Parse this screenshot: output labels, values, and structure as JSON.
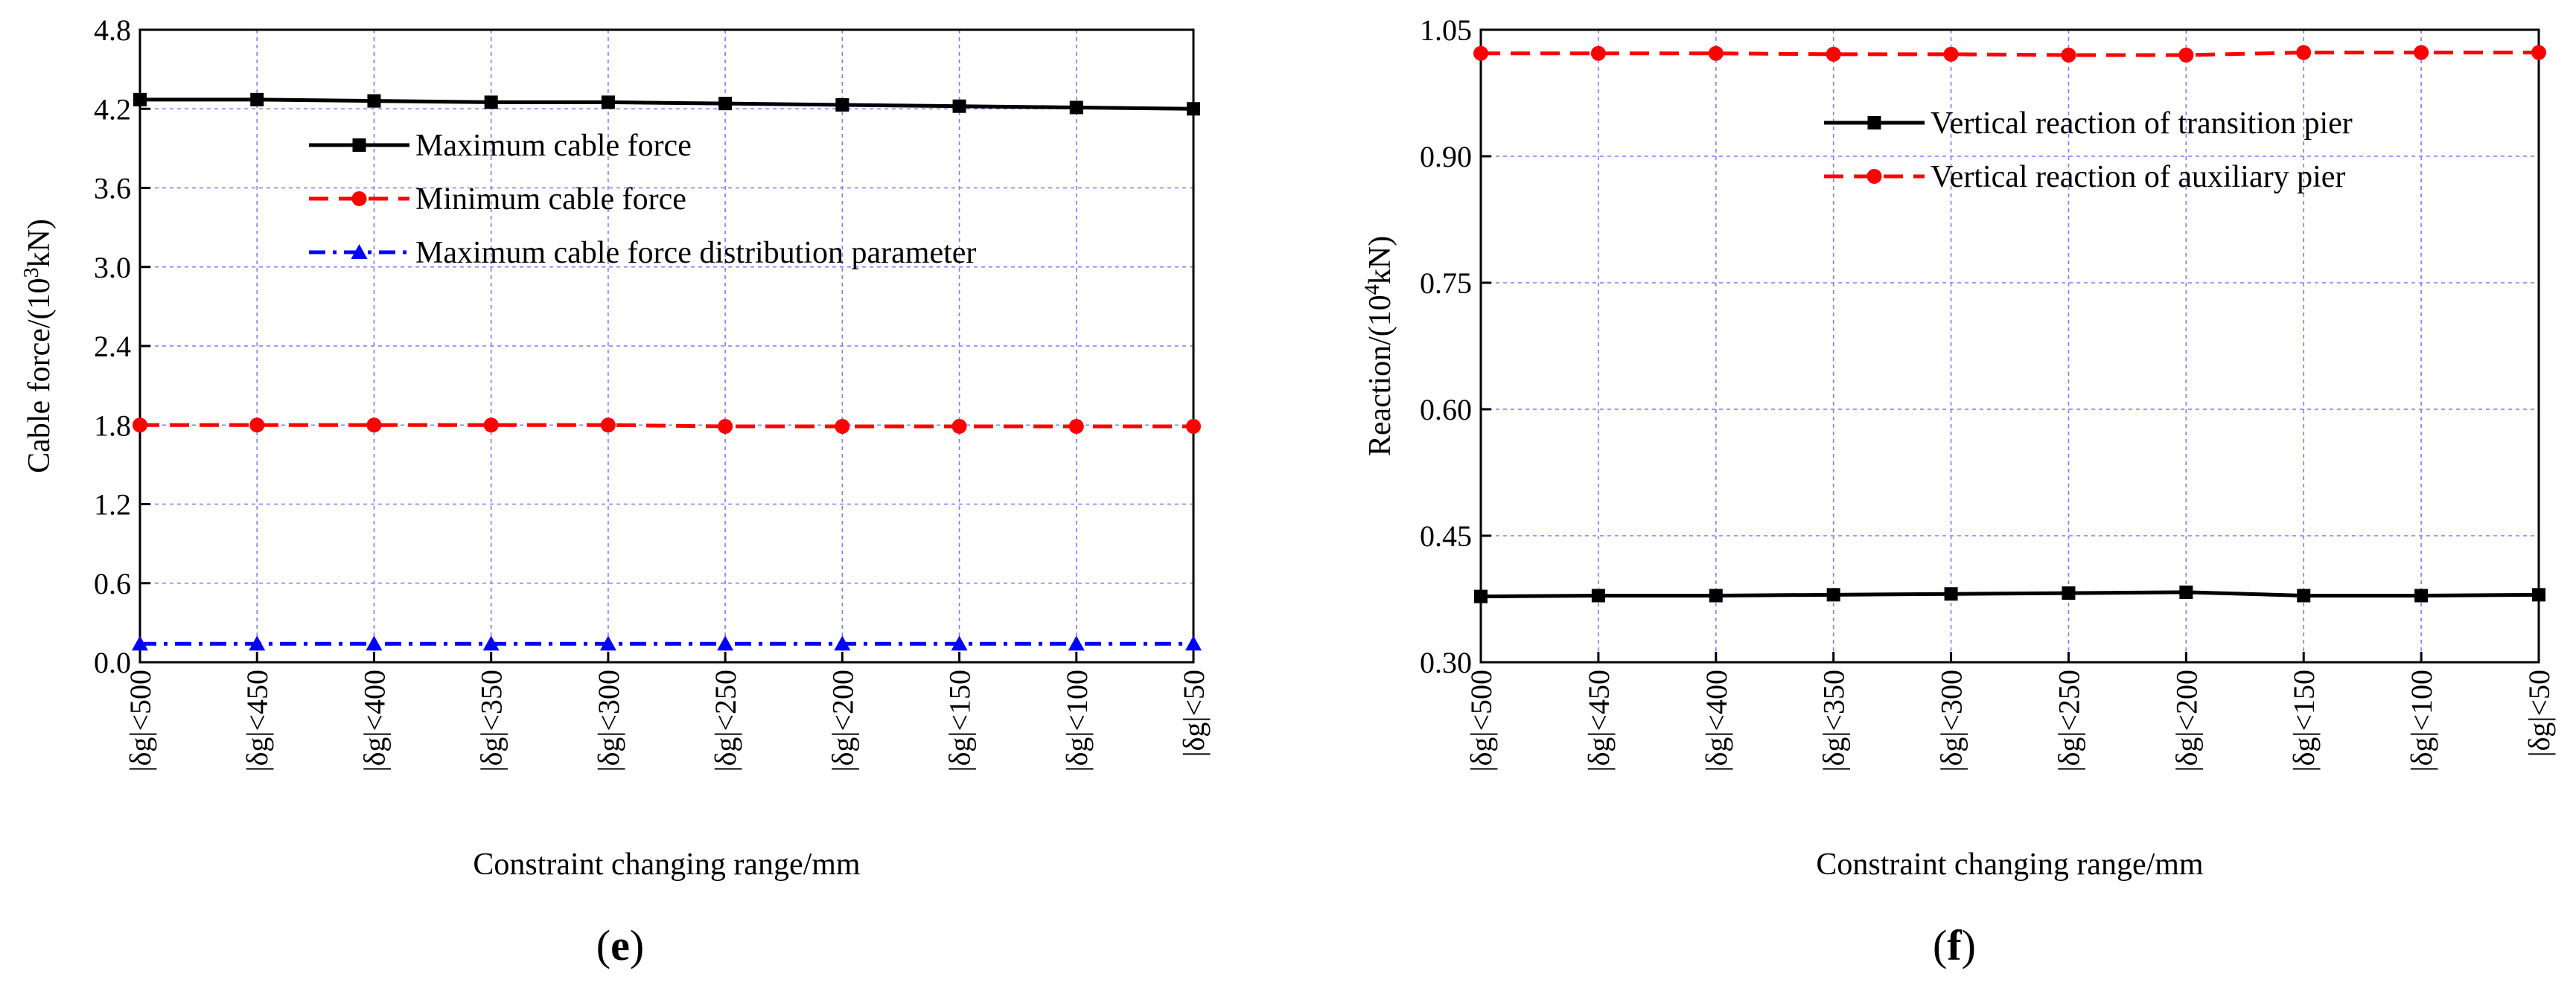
{
  "chart_data": [
    {
      "type": "line",
      "panel_label": "e",
      "xlabel": "Constraint changing range/mm",
      "ylabel": "Cable force/(10³kN)",
      "ylabel_parts": {
        "pre": "Cable force/(10",
        "sup": "3",
        "post": "kN)"
      },
      "categories": [
        "|δg|<500",
        "|δg|<450",
        "|δg|<400",
        "|δg|<350",
        "|δg|<300",
        "|δg|<250",
        "|δg|<200",
        "|δg|<150",
        "|δg|<100",
        "|δg|<50"
      ],
      "ylim": [
        0,
        4.8
      ],
      "yticks": [
        "0.0",
        "0.6",
        "1.2",
        "1.8",
        "2.4",
        "3.0",
        "3.6",
        "4.2",
        "4.8"
      ],
      "grid": true,
      "legend_position": "top-left",
      "series": [
        {
          "name": "Maximum cable force",
          "color": "#000000",
          "dash": "solid",
          "marker": "square",
          "values": [
            4.27,
            4.27,
            4.26,
            4.25,
            4.25,
            4.24,
            4.23,
            4.22,
            4.21,
            4.2
          ]
        },
        {
          "name": "Minimum cable force",
          "color": "#ff0000",
          "dash": "dash",
          "marker": "circle",
          "values": [
            1.8,
            1.8,
            1.8,
            1.8,
            1.8,
            1.79,
            1.79,
            1.79,
            1.79,
            1.79
          ]
        },
        {
          "name": "Maximum cable force distribution parameter",
          "color": "#0000ff",
          "dash": "dashdot",
          "marker": "triangle",
          "values": [
            0.14,
            0.14,
            0.14,
            0.14,
            0.14,
            0.14,
            0.14,
            0.14,
            0.14,
            0.14
          ]
        }
      ]
    },
    {
      "type": "line",
      "panel_label": "f",
      "xlabel": "Constraint changing range/mm",
      "ylabel": "Reaction/(10⁴kN)",
      "ylabel_parts": {
        "pre": "Reaction/(10",
        "sup": "4",
        "post": "kN)"
      },
      "categories": [
        "|δg|<500",
        "|δg|<450",
        "|δg|<400",
        "|δg|<350",
        "|δg|<300",
        "|δg|<250",
        "|δg|<200",
        "|δg|<150",
        "|δg|<100",
        "|δg|<50"
      ],
      "ylim": [
        0.3,
        1.05
      ],
      "yticks": [
        "0.30",
        "0.45",
        "0.60",
        "0.75",
        "0.90",
        "1.05"
      ],
      "grid": true,
      "legend_position": "top-right",
      "series": [
        {
          "name": "Vertical reaction of transition pier",
          "color": "#000000",
          "dash": "solid",
          "marker": "square",
          "values": [
            0.378,
            0.379,
            0.379,
            0.38,
            0.381,
            0.382,
            0.383,
            0.379,
            0.379,
            0.38
          ]
        },
        {
          "name": "Vertical reaction of auxiliary pier",
          "color": "#ff0000",
          "dash": "dash",
          "marker": "circle",
          "values": [
            1.022,
            1.022,
            1.022,
            1.021,
            1.021,
            1.02,
            1.02,
            1.023,
            1.023,
            1.023
          ]
        }
      ]
    }
  ]
}
